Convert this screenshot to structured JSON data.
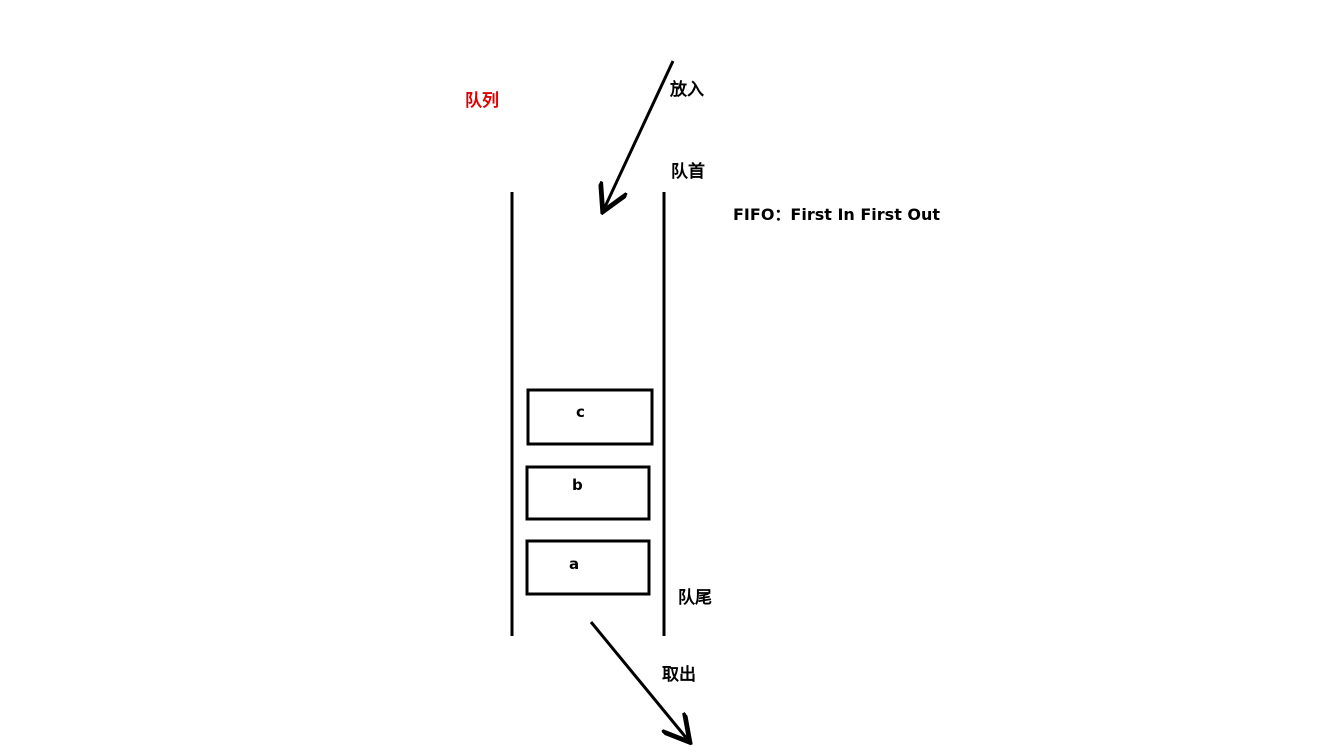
{
  "diagram": {
    "title": "队列",
    "title_color": "#e00000",
    "put_label": "放入",
    "head_label": "队首",
    "tail_label": "队尾",
    "take_label": "取出",
    "fifo_text": "FIFO：First In First Out",
    "items": [
      {
        "label": "c"
      },
      {
        "label": "b"
      },
      {
        "label": "a"
      }
    ],
    "line_color": "#000000"
  }
}
